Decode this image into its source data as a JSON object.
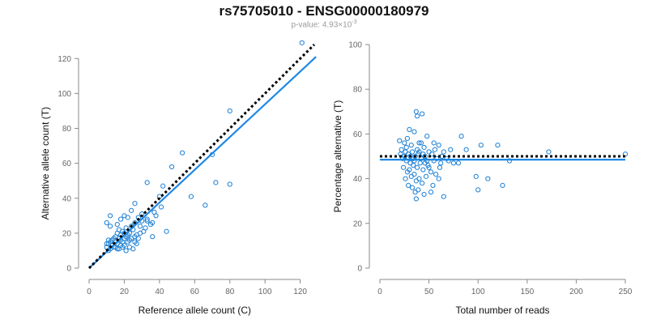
{
  "header": {
    "title": "rs75705010 - ENSG00000180979",
    "pvalue_prefix": "p-value: 4.93×10",
    "pvalue_exponent": "-3"
  },
  "colors": {
    "points": "#1b7fd4",
    "fit_line": "#1e88e5",
    "reference_line": "#000000",
    "axes": "#8a8a8a"
  },
  "chart_data": [
    {
      "type": "scatter",
      "xlabel": "Reference allele count (C)",
      "ylabel": "Alternative allele count (T)",
      "xlim": [
        0,
        128
      ],
      "ylim": [
        0,
        128
      ],
      "xticks": [
        0,
        20,
        40,
        60,
        80,
        100,
        120
      ],
      "yticks": [
        0,
        20,
        40,
        60,
        80,
        100,
        120
      ],
      "fit_line": {
        "x": [
          0,
          129
        ],
        "y": [
          0,
          121
        ]
      },
      "reference_line": {
        "x": [
          0,
          128
        ],
        "y": [
          0,
          128
        ]
      },
      "points": [
        [
          121,
          129
        ],
        [
          80,
          90
        ],
        [
          53,
          66
        ],
        [
          47,
          58
        ],
        [
          33,
          49
        ],
        [
          72,
          49
        ],
        [
          80,
          48
        ],
        [
          70,
          65
        ],
        [
          58,
          41
        ],
        [
          66,
          36
        ],
        [
          44,
          21
        ],
        [
          36,
          18
        ],
        [
          40,
          41
        ],
        [
          42,
          47
        ],
        [
          41,
          35
        ],
        [
          38,
          30
        ],
        [
          33,
          28
        ],
        [
          32,
          23
        ],
        [
          30,
          27
        ],
        [
          35,
          25
        ],
        [
          28,
          29
        ],
        [
          26,
          37
        ],
        [
          24,
          33
        ],
        [
          26,
          26
        ],
        [
          22,
          29
        ],
        [
          20,
          30
        ],
        [
          18,
          28
        ],
        [
          16,
          25
        ],
        [
          12,
          30
        ],
        [
          10,
          26
        ],
        [
          12,
          24
        ],
        [
          17,
          22
        ],
        [
          19,
          21
        ],
        [
          21,
          23
        ],
        [
          23,
          20
        ],
        [
          25,
          22
        ],
        [
          27,
          19
        ],
        [
          29,
          24
        ],
        [
          31,
          21
        ],
        [
          24,
          17
        ],
        [
          26,
          15
        ],
        [
          22,
          15
        ],
        [
          20,
          13
        ],
        [
          18,
          16
        ],
        [
          16,
          14
        ],
        [
          15,
          18
        ],
        [
          14,
          12
        ],
        [
          12,
          11
        ],
        [
          11,
          14
        ],
        [
          13,
          16
        ],
        [
          15,
          12
        ],
        [
          10,
          12
        ],
        [
          11,
          10
        ],
        [
          17,
          11
        ],
        [
          19,
          12
        ],
        [
          21,
          10
        ],
        [
          23,
          12
        ],
        [
          25,
          11
        ],
        [
          27,
          14
        ],
        [
          28,
          17
        ],
        [
          22,
          19
        ],
        [
          18,
          19
        ],
        [
          16,
          20
        ],
        [
          14,
          17
        ],
        [
          13,
          13
        ],
        [
          12,
          15
        ],
        [
          11,
          16
        ],
        [
          10,
          14
        ],
        [
          20,
          17
        ],
        [
          24,
          24
        ],
        [
          30,
          31
        ],
        [
          33,
          27
        ],
        [
          36,
          26
        ],
        [
          37,
          32
        ],
        [
          19,
          15
        ],
        [
          17,
          17
        ],
        [
          23,
          16
        ],
        [
          21,
          18
        ],
        [
          15,
          15
        ],
        [
          16,
          11
        ],
        [
          18,
          13
        ],
        [
          20,
          20
        ],
        [
          26,
          18
        ],
        [
          29,
          20
        ]
      ]
    },
    {
      "type": "scatter",
      "xlabel": "Total number of reads",
      "ylabel": "Percentage alternative (T)",
      "xlim": [
        0,
        250
      ],
      "ylim": [
        0,
        100
      ],
      "xticks": [
        0,
        50,
        100,
        150,
        200,
        250
      ],
      "yticks": [
        0,
        20,
        40,
        60,
        80,
        100
      ],
      "fit_line": {
        "x": [
          0,
          250
        ],
        "y": [
          48.5,
          48.5
        ]
      },
      "reference_line": {
        "x": [
          0,
          250
        ],
        "y": [
          50,
          50
        ]
      },
      "points": [
        [
          37,
          70
        ],
        [
          43,
          69
        ],
        [
          38,
          68
        ],
        [
          30,
          62
        ],
        [
          35,
          61
        ],
        [
          48,
          59
        ],
        [
          83,
          59
        ],
        [
          20,
          57
        ],
        [
          25,
          56
        ],
        [
          28,
          58
        ],
        [
          32,
          55
        ],
        [
          40,
          56
        ],
        [
          45,
          54
        ],
        [
          55,
          56
        ],
        [
          60,
          55
        ],
        [
          72,
          53
        ],
        [
          88,
          53
        ],
        [
          103,
          55
        ],
        [
          120,
          55
        ],
        [
          172,
          52
        ],
        [
          250,
          51
        ],
        [
          22,
          53
        ],
        [
          26,
          52
        ],
        [
          29,
          51
        ],
        [
          33,
          52
        ],
        [
          36,
          50
        ],
        [
          39,
          51
        ],
        [
          42,
          49
        ],
        [
          46,
          50
        ],
        [
          50,
          52
        ],
        [
          53,
          51
        ],
        [
          58,
          49
        ],
        [
          63,
          50
        ],
        [
          65,
          52
        ],
        [
          70,
          48
        ],
        [
          75,
          47
        ],
        [
          80,
          47
        ],
        [
          132,
          48
        ],
        [
          23,
          49
        ],
        [
          27,
          48
        ],
        [
          31,
          47
        ],
        [
          34,
          46
        ],
        [
          38,
          45
        ],
        [
          41,
          47
        ],
        [
          44,
          44
        ],
        [
          49,
          46
        ],
        [
          52,
          43
        ],
        [
          57,
          42
        ],
        [
          61,
          45
        ],
        [
          24,
          45
        ],
        [
          28,
          43
        ],
        [
          32,
          41
        ],
        [
          35,
          42
        ],
        [
          37,
          39
        ],
        [
          40,
          40
        ],
        [
          43,
          38
        ],
        [
          47,
          41
        ],
        [
          54,
          37
        ],
        [
          60,
          40
        ],
        [
          98,
          41
        ],
        [
          110,
          40
        ],
        [
          125,
          37
        ],
        [
          100,
          35
        ],
        [
          26,
          40
        ],
        [
          29,
          37
        ],
        [
          33,
          36
        ],
        [
          36,
          34
        ],
        [
          39,
          35
        ],
        [
          45,
          33
        ],
        [
          52,
          34
        ],
        [
          65,
          32
        ],
        [
          37,
          31
        ],
        [
          30,
          44
        ],
        [
          34,
          49
        ],
        [
          38,
          53
        ],
        [
          42,
          56
        ],
        [
          46,
          47
        ],
        [
          50,
          45
        ],
        [
          55,
          48
        ],
        [
          25,
          50
        ],
        [
          21,
          51
        ],
        [
          27,
          54
        ],
        [
          31,
          50
        ],
        [
          35,
          48
        ],
        [
          40,
          52
        ],
        [
          44,
          51
        ],
        [
          48,
          48
        ],
        [
          56,
          53
        ],
        [
          62,
          47
        ],
        [
          68,
          49
        ]
      ]
    }
  ]
}
